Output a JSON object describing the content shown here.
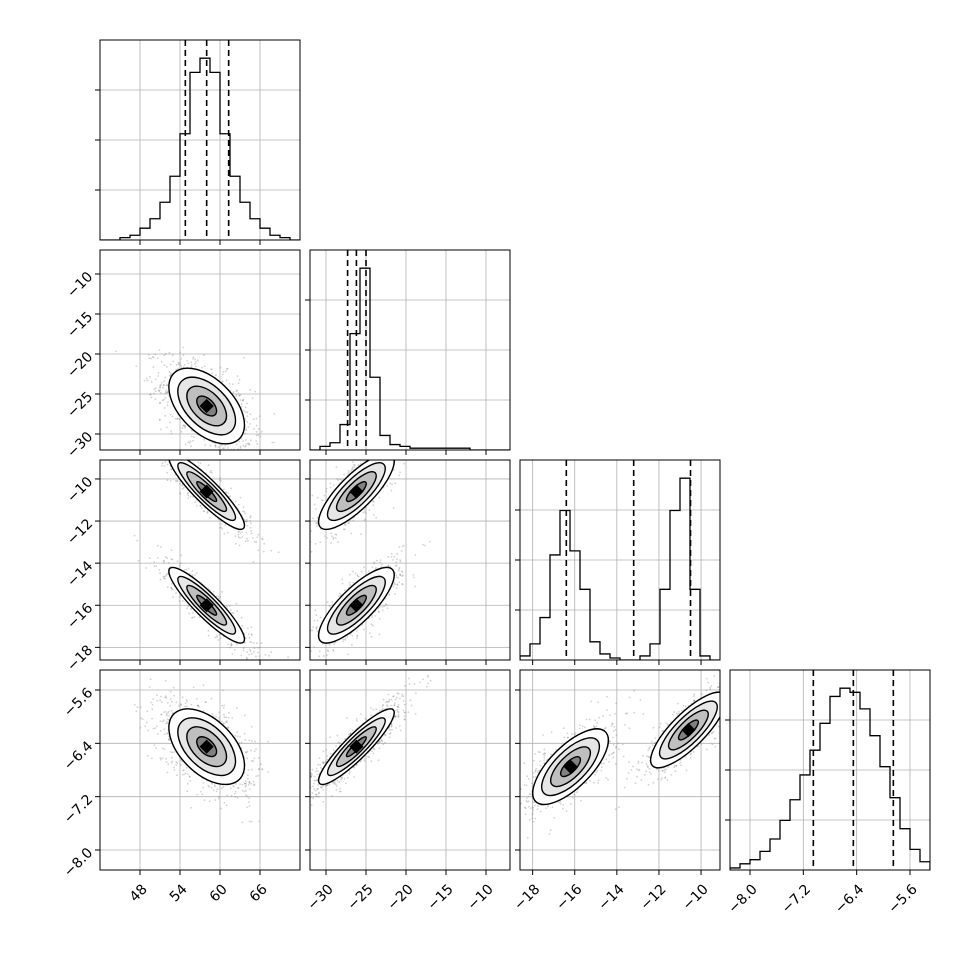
{
  "chart_data": {
    "type": "corner",
    "grid": true,
    "colors": {
      "ink": "#000000",
      "scatter": "#7f7f7f",
      "grid": "#b0b0b0"
    },
    "parameters": [
      {
        "range": [
          42,
          72
        ],
        "ticks": [
          48,
          54,
          60,
          66
        ],
        "tick_labels": [
          "48",
          "54",
          "60",
          "66"
        ],
        "quantiles": [
          54.8,
          58.0,
          61.3
        ],
        "mode": 58.0,
        "sigma": 3.3
      },
      {
        "range": [
          -32,
          -7
        ],
        "ticks": [
          -30,
          -25,
          -20,
          -15,
          -10
        ],
        "tick_labels": [
          "−30",
          "−25",
          "−20",
          "−15",
          "−10"
        ],
        "quantiles": [
          -27.3,
          -26.2,
          -25.0
        ],
        "mode": -26.2,
        "sigma": 1.2
      },
      {
        "range": [
          -18.6,
          -9.1
        ],
        "ticks": [
          -18,
          -16,
          -14,
          -12,
          -10
        ],
        "tick_labels": [
          "−18",
          "−16",
          "−14",
          "−12",
          "−10"
        ],
        "quantiles": [
          -16.4,
          -13.2,
          -10.5
        ],
        "modes": [
          -16.2,
          -10.6
        ],
        "sigma": 0.45
      },
      {
        "range": [
          -8.3,
          -5.3
        ],
        "ticks": [
          -8.0,
          -7.2,
          -6.4,
          -5.6
        ],
        "tick_labels": [
          "−8.0",
          "−7.2",
          "−6.4",
          "−5.6"
        ],
        "quantiles": [
          -7.05,
          -6.45,
          -5.85
        ],
        "mode": -6.45,
        "sigma": 0.5
      }
    ],
    "histograms": [
      {
        "param": 0,
        "bin_edges": [
          42,
          43.5,
          45,
          46.5,
          48,
          49.5,
          51,
          52.5,
          54,
          55.5,
          57,
          58.5,
          60,
          61.5,
          63,
          64.5,
          66,
          67.5,
          69,
          70.5,
          72
        ],
        "counts": [
          0,
          0,
          1,
          2,
          5,
          9,
          16,
          27,
          45,
          71,
          77,
          71,
          45,
          27,
          16,
          9,
          5,
          2,
          1,
          0
        ]
      },
      {
        "param": 1,
        "bin_edges": [
          -32,
          -30.75,
          -29.5,
          -28.25,
          -27,
          -25.75,
          -24.5,
          -23.25,
          -22,
          -20.75,
          -19.5,
          -18.25,
          -17,
          -15.75,
          -14.5,
          -13.25,
          -12,
          -10.75,
          -9.5,
          -8.25,
          -7
        ],
        "counts": [
          0,
          2,
          4,
          14,
          64,
          100,
          40,
          8,
          3,
          2,
          1,
          1,
          1,
          1,
          1,
          1,
          0,
          0,
          0,
          0
        ]
      },
      {
        "param": 2,
        "bin_edges": [
          -18.6,
          -18.125,
          -17.65,
          -17.175,
          -16.7,
          -16.225,
          -15.75,
          -15.275,
          -14.8,
          -14.325,
          -13.85,
          -13.375,
          -12.9,
          -12.425,
          -11.95,
          -11.475,
          -11.0,
          -10.525,
          -10.05,
          -9.575,
          -9.1
        ],
        "counts": [
          2,
          8,
          21,
          52,
          74,
          54,
          35,
          9,
          3,
          1,
          0,
          0,
          2,
          8,
          35,
          74,
          90,
          35,
          2,
          0
        ]
      },
      {
        "param": 3,
        "bin_edges": [
          -8.3,
          -8.15,
          -8.0,
          -7.85,
          -7.7,
          -7.55,
          -7.4,
          -7.25,
          -7.1,
          -6.95,
          -6.8,
          -6.65,
          -6.5,
          -6.35,
          -6.2,
          -6.05,
          -5.9,
          -5.75,
          -5.6,
          -5.45,
          -5.3
        ],
        "counts": [
          1,
          3,
          5,
          9,
          15,
          24,
          34,
          46,
          58,
          71,
          84,
          88,
          86,
          78,
          65,
          50,
          35,
          20,
          10,
          4
        ]
      }
    ],
    "pairs": [
      {
        "x": 0,
        "y": 1,
        "clusters": [
          {
            "mean": [
              58.0,
              -26.5
            ],
            "corr": -0.5
          }
        ]
      },
      {
        "x": 0,
        "y": 2,
        "clusters": [
          {
            "mean": [
              58.0,
              -10.6
            ],
            "corr": -0.9
          },
          {
            "mean": [
              58.0,
              -16.0
            ],
            "corr": -0.9
          }
        ]
      },
      {
        "x": 1,
        "y": 2,
        "clusters": [
          {
            "mean": [
              -26.2,
              -10.6
            ],
            "corr": 0.8
          },
          {
            "mean": [
              -26.2,
              -16.0
            ],
            "corr": 0.8
          }
        ]
      },
      {
        "x": 0,
        "y": 3,
        "clusters": [
          {
            "mean": [
              58.0,
              -6.45
            ],
            "corr": -0.5
          }
        ]
      },
      {
        "x": 1,
        "y": 3,
        "clusters": [
          {
            "mean": [
              -26.2,
              -6.45
            ],
            "corr": 0.9
          }
        ]
      },
      {
        "x": 2,
        "y": 3,
        "clusters": [
          {
            "mean": [
              -16.2,
              -6.75
            ],
            "corr": 0.7
          },
          {
            "mean": [
              -10.6,
              -6.2
            ],
            "corr": 0.8
          }
        ]
      }
    ]
  }
}
